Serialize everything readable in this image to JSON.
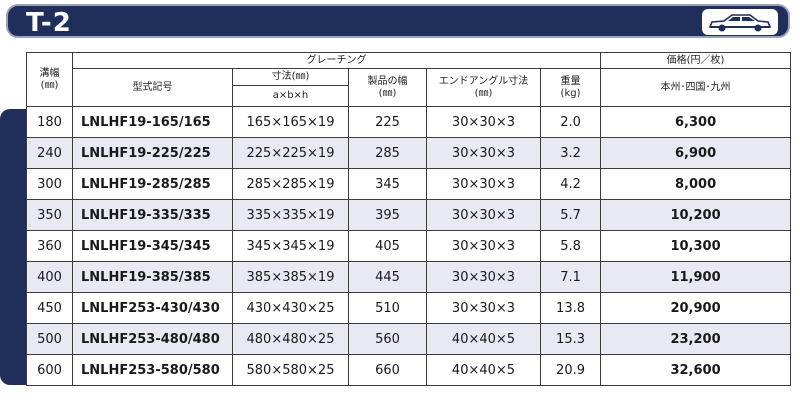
{
  "title": {
    "code": "T-2",
    "icon": "car-icon"
  },
  "header": {
    "groove_width": "溝幅\n(㎜)",
    "grating": "グレーチング",
    "model": "型式記号",
    "dimensions": "寸法(㎜)",
    "dimensions_sub": "a×b×h",
    "product_width": "製品の幅\n(㎜)",
    "end_angle": "エンドアングル寸法\n(㎜)",
    "weight": "重量\n(kg)",
    "price": "価格(円／枚)",
    "region": "本州･四国･九州"
  },
  "rows": [
    {
      "groove": "180",
      "model": "LNLHF19-165/165",
      "dim": "165×165×19",
      "width": "225",
      "angle": "30×30×3",
      "weight": "2.0",
      "price": "6,300"
    },
    {
      "groove": "240",
      "model": "LNLHF19-225/225",
      "dim": "225×225×19",
      "width": "285",
      "angle": "30×30×3",
      "weight": "3.2",
      "price": "6,900"
    },
    {
      "groove": "300",
      "model": "LNLHF19-285/285",
      "dim": "285×285×19",
      "width": "345",
      "angle": "30×30×3",
      "weight": "4.2",
      "price": "8,000"
    },
    {
      "groove": "350",
      "model": "LNLHF19-335/335",
      "dim": "335×335×19",
      "width": "395",
      "angle": "30×30×3",
      "weight": "5.7",
      "price": "10,200"
    },
    {
      "groove": "360",
      "model": "LNLHF19-345/345",
      "dim": "345×345×19",
      "width": "405",
      "angle": "30×30×3",
      "weight": "5.8",
      "price": "10,300"
    },
    {
      "groove": "400",
      "model": "LNLHF19-385/385",
      "dim": "385×385×19",
      "width": "445",
      "angle": "30×30×3",
      "weight": "7.1",
      "price": "11,900"
    },
    {
      "groove": "450",
      "model": "LNLHF253-430/430",
      "dim": "430×430×25",
      "width": "510",
      "angle": "30×30×3",
      "weight": "13.8",
      "price": "20,900"
    },
    {
      "groove": "500",
      "model": "LNLHF253-480/480",
      "dim": "480×480×25",
      "width": "560",
      "angle": "40×40×5",
      "weight": "15.3",
      "price": "23,200"
    },
    {
      "groove": "600",
      "model": "LNLHF253-580/580",
      "dim": "580×580×25",
      "width": "660",
      "angle": "40×40×5",
      "weight": "20.9",
      "price": "32,600"
    }
  ],
  "colors": {
    "navy": "#1f2e5a",
    "stripe": "#e8e9f3"
  }
}
